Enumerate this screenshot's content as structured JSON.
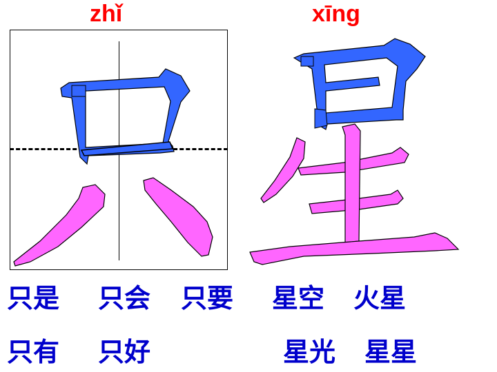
{
  "characters": [
    {
      "pinyin": "zhǐ",
      "hanzi": "只"
    },
    {
      "pinyin": "xīng",
      "hanzi": "星"
    }
  ],
  "colors": {
    "pinyin": "#ff0000",
    "stroke_primary": "#3366ff",
    "stroke_secondary": "#ff66ff",
    "words": "#0000cc"
  },
  "words": {
    "zhi": [
      "只是",
      "只会",
      "只要",
      "只有",
      "只好"
    ],
    "xing": [
      "星空",
      "火星",
      "星光",
      "星星"
    ]
  }
}
